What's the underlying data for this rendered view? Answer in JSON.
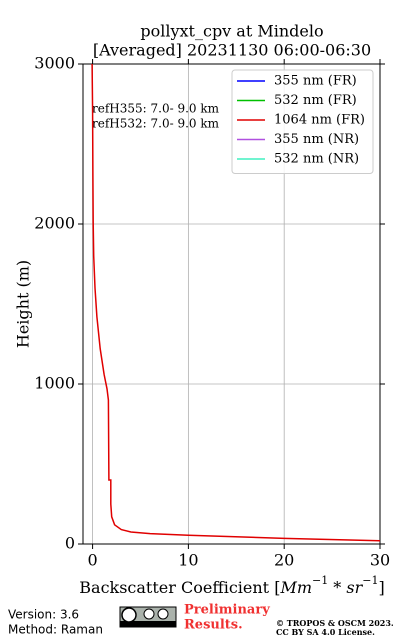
{
  "chart_data": {
    "type": "line",
    "title": [
      "pollyxt_cpv at Mindelo",
      "[Averaged] 20231130 06:00-06:30"
    ],
    "xlabel": [
      "Backscatter Coefficient [",
      "Mm",
      "−1",
      " * ",
      "sr",
      "−1",
      "]"
    ],
    "ylabel": "Height (m)",
    "xlim": [
      -1,
      30
    ],
    "xticks": [
      0,
      10,
      20,
      30
    ],
    "ylim": [
      0,
      3000
    ],
    "yticks": [
      0,
      1000,
      2000,
      3000
    ],
    "grid": true,
    "legend": "upper right",
    "annotations": [
      "refH355:  7.0- 9.0 km",
      "refH532:  7.0- 9.0 km"
    ],
    "series": [
      {
        "name": "355 nm (FR)",
        "color": "#0000ff",
        "x": [],
        "y": []
      },
      {
        "name": "532 nm (FR)",
        "color": "#00c000",
        "x": [],
        "y": []
      },
      {
        "name": "1064 nm (FR)",
        "color": "#e00000",
        "x": [
          30,
          20,
          10,
          6,
          4,
          3,
          2.3,
          2.0,
          1.9,
          1.9,
          1.7,
          1.65,
          1.5,
          1.2,
          0.8,
          0.45,
          0.25,
          0.12,
          0.06,
          0.03,
          0.0,
          -0.05
        ],
        "y": [
          20,
          35,
          55,
          65,
          75,
          90,
          120,
          170,
          250,
          400,
          400,
          900,
          970,
          1060,
          1220,
          1420,
          1600,
          1800,
          2000,
          2300,
          2700,
          3000
        ]
      },
      {
        "name": "355 nm (NR)",
        "color": "#b050e0",
        "x": [],
        "y": []
      },
      {
        "name": "532 nm (NR)",
        "color": "#40f0c0",
        "x": [],
        "y": []
      }
    ]
  },
  "footer": {
    "version": "Version: 3.6",
    "method": "Method: Raman",
    "status": [
      "Preliminary",
      "Results."
    ],
    "license": [
      "© TROPOS & OSCM 2023.",
      "CC BY SA 4.0 License."
    ]
  }
}
